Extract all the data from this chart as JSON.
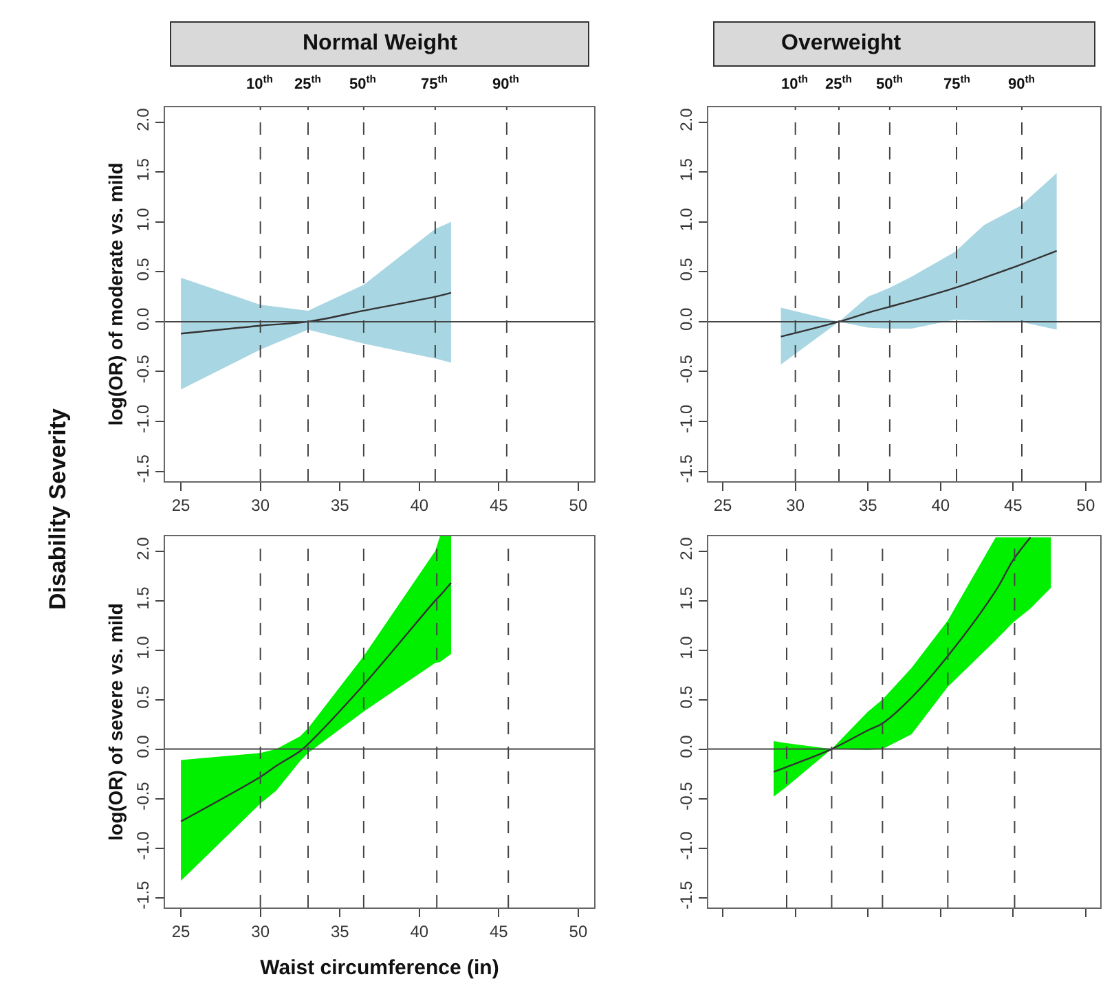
{
  "chart_data": [
    {
      "type": "line",
      "title": "Normal Weight",
      "ylabel": "log(OR) of moderate vs. mild",
      "annotations": [
        "Disability Severity"
      ],
      "xlim": [
        24,
        51
      ],
      "ylim": [
        -1.6,
        2.15
      ],
      "xticks": [
        25,
        30,
        35,
        40,
        45,
        50
      ],
      "yticks": [
        -1.5,
        {
          "value": -1,
          "label": "-1.0"
        },
        -0.5,
        {
          "value": 0,
          "label": "0.0"
        },
        0.5,
        {
          "value": 1,
          "label": "1.0"
        },
        1.5,
        {
          "value": 2,
          "label": "2.0"
        }
      ],
      "marker": "none",
      "line_style": "solid",
      "series": [
        {
          "color": "#333333",
          "x": [
            25,
            30,
            33,
            36.5,
            41,
            42
          ],
          "values": [
            -0.12,
            -0.04,
            0,
            0.11,
            0.25,
            0.29
          ],
          "lower": [
            -0.68,
            -0.28,
            -0.08,
            -0.22,
            -0.37,
            -0.41
          ],
          "upper": [
            0.44,
            0.17,
            0.11,
            0.37,
            0.93,
            1.0
          ]
        }
      ],
      "ref_lines": [
        {
          "axis": "y",
          "value": 0,
          "line_style": "solid"
        },
        {
          "axis": "x",
          "value": 30,
          "label": "10$^{th}$",
          "line_style": "dashed"
        },
        {
          "axis": "x",
          "value": 33,
          "label": "25$^{th}$",
          "line_style": "dashed"
        },
        {
          "axis": "x",
          "value": 36.5,
          "label": "50$^{th}$",
          "line_style": "dashed"
        },
        {
          "axis": "x",
          "value": 41,
          "label": "75$^{th}$",
          "line_style": "dashed"
        },
        {
          "axis": "x",
          "value": 45.5,
          "label": "90$^{th}$",
          "line_style": "dashed"
        }
      ]
    },
    {
      "type": "line",
      "title": "Overweight",
      "xlim": [
        24,
        51
      ],
      "ylim": [
        -1.6,
        2.15
      ],
      "xticks": [
        25,
        30,
        35,
        40,
        45,
        50
      ],
      "yticks": [
        -1.5,
        {
          "value": -1,
          "label": "-1.0"
        },
        -0.5,
        {
          "value": 0,
          "label": "0.0"
        },
        0.5,
        {
          "value": 1,
          "label": "1.0"
        },
        1.5,
        {
          "value": 2,
          "label": "2.0"
        }
      ],
      "marker": "none",
      "line_style": "solid",
      "series": [
        {
          "color": "#333333",
          "x": [
            29,
            33,
            35,
            36.5,
            38,
            41,
            43,
            45.5,
            48
          ],
          "values": [
            -0.15,
            0,
            0.09,
            0.15,
            0.21,
            0.34,
            0.44,
            0.57,
            0.71
          ],
          "lower": [
            -0.43,
            0,
            -0.06,
            -0.07,
            -0.07,
            0.02,
            0.01,
            0,
            -0.08
          ],
          "upper": [
            0.14,
            0,
            0.25,
            0.34,
            0.45,
            0.7,
            0.97,
            1.16,
            1.49
          ]
        }
      ],
      "ref_lines": [
        {
          "axis": "y",
          "value": 0,
          "line_style": "solid"
        },
        {
          "axis": "x",
          "value": 30,
          "label": "10$^{th}$",
          "line_style": "dashed"
        },
        {
          "axis": "x",
          "value": 33,
          "label": "25$^{th}$",
          "line_style": "dashed"
        },
        {
          "axis": "x",
          "value": 36.5,
          "label": "50$^{th}$",
          "line_style": "dashed"
        },
        {
          "axis": "x",
          "value": 41.1,
          "label": "75$^{th}$",
          "line_style": "dashed"
        },
        {
          "axis": "x",
          "value": 45.6,
          "label": "90$^{th}$",
          "line_style": "dashed"
        }
      ]
    },
    {
      "type": "line",
      "xlabel": "Waist circumference (in)",
      "ylabel": "log(OR) of severe vs. mild",
      "xlim": [
        24,
        51
      ],
      "ylim": [
        -1.6,
        2.15
      ],
      "xticks": [
        25,
        30,
        35,
        40,
        45,
        50
      ],
      "yticks": [
        -1.5,
        {
          "value": -1,
          "label": "-1.0"
        },
        -0.5,
        {
          "value": 0,
          "label": "0.0"
        },
        0.5,
        {
          "value": 1,
          "label": "1.0"
        },
        1.5,
        {
          "value": 2,
          "label": "2.0"
        }
      ],
      "marker": "none",
      "line_style": "solid",
      "series": [
        {
          "color": "#333333",
          "x": [
            25,
            30,
            31,
            32.5,
            33,
            36.5,
            41,
            41.3,
            42
          ],
          "values": [
            -0.73,
            -0.28,
            -0.17,
            -0.02,
            0.05,
            0.65,
            1.5,
            1.55,
            1.68
          ],
          "lower": [
            -1.33,
            -0.55,
            -0.42,
            -0.12,
            -0.04,
            0.38,
            0.87,
            0.88,
            0.96
          ],
          "upper": [
            -0.11,
            -0.04,
            0,
            0.13,
            0.21,
            0.94,
            2.0,
            2.15,
            2.15
          ]
        }
      ],
      "ref_lines": [
        {
          "axis": "y",
          "value": 0,
          "line_style": "solid"
        },
        {
          "axis": "x",
          "value": 30,
          "line_style": "dashed"
        },
        {
          "axis": "x",
          "value": 33,
          "line_style": "dashed"
        },
        {
          "axis": "x",
          "value": 36.5,
          "line_style": "dashed"
        },
        {
          "axis": "x",
          "value": 41.1,
          "line_style": "dashed"
        },
        {
          "axis": "x",
          "value": 45.6,
          "line_style": "dashed"
        }
      ]
    },
    {
      "type": "line",
      "xlim": [
        24,
        51
      ],
      "ylim": [
        -1.6,
        2.15
      ],
      "xticks": [
        25,
        30,
        35,
        40,
        45,
        50
      ],
      "yticks": [
        -1.5,
        {
          "value": -1,
          "label": "-1.0"
        },
        -0.5,
        {
          "value": 0,
          "label": "0.0"
        },
        0.5,
        {
          "value": 1,
          "label": "1.0"
        },
        1.5,
        {
          "value": 2,
          "label": "2.0"
        }
      ],
      "tick_labels": "y",
      "marker": "none",
      "line_style": "solid",
      "series": [
        {
          "color": "#333333",
          "x": [
            28.5,
            29.4,
            32.5,
            35,
            36,
            38,
            40.5,
            43.8,
            45,
            46.2,
            47.6
          ],
          "values": [
            -0.23,
            -0.18,
            0,
            0.19,
            0.26,
            0.52,
            0.94,
            1.6,
            1.91,
            2.14,
            null
          ],
          "lower": [
            -0.48,
            -0.38,
            0,
            -0.01,
            0,
            0.15,
            0.63,
            1.1,
            1.28,
            1.42,
            1.63
          ],
          "upper": [
            0.08,
            0.06,
            0,
            0.38,
            0.5,
            0.82,
            1.3,
            2.14,
            2.14,
            2.14,
            2.14
          ]
        }
      ],
      "ref_lines": [
        {
          "axis": "y",
          "value": 0,
          "line_style": "solid"
        },
        {
          "axis": "x",
          "value": 29.4,
          "line_style": "dashed"
        },
        {
          "axis": "x",
          "value": 32.5,
          "line_style": "dashed"
        },
        {
          "axis": "x",
          "value": 36,
          "line_style": "dashed"
        },
        {
          "axis": "x",
          "value": 40.5,
          "line_style": "dashed"
        },
        {
          "axis": "x",
          "value": 45.1,
          "line_style": "dashed"
        }
      ]
    }
  ]
}
